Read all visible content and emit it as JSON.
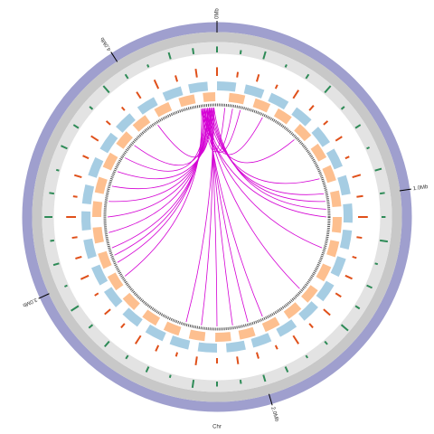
{
  "chart_data": {
    "type": "circos",
    "xlabel": "Chr",
    "xlim": [
      0,
      4.4
    ],
    "xticks": [
      {
        "value": 0,
        "label": "0Mb"
      },
      {
        "value": 1,
        "label": "1.0Mb"
      },
      {
        "value": 2,
        "label": "2.0Mb"
      },
      {
        "value": 3,
        "label": "3.0Mb"
      },
      {
        "value": 4,
        "label": "4.0Mb"
      }
    ],
    "ylim": [
      0,
      1
    ],
    "x": [
      0,
      0.1,
      0.2,
      0.3,
      0.4,
      0.5,
      0.6,
      0.7,
      0.8,
      0.9,
      1.0,
      1.1,
      1.2,
      1.3,
      1.4,
      1.5,
      1.6,
      1.7,
      1.8,
      1.9,
      2.0,
      2.1,
      2.2,
      2.3,
      2.4,
      2.5,
      2.6,
      2.7,
      2.8,
      2.9,
      3.0,
      3.1,
      3.2,
      3.3,
      3.4,
      3.5,
      3.6,
      3.7,
      3.8,
      3.9,
      4.0,
      4.1,
      4.2,
      4.3
    ],
    "tracks": [
      {
        "color": "#2e8b57",
        "values": [
          0.6,
          0.4,
          0.8,
          0.3,
          0.5,
          0.9,
          0.4,
          0.6,
          0.3,
          0.7,
          0.5,
          0.4,
          0.8,
          0.3,
          0.6,
          0.5,
          0.9,
          0.4,
          0.3,
          0.6,
          0.7,
          0.4,
          0.5,
          0.8,
          0.3,
          0.6,
          0.4,
          0.7,
          0.5,
          0.9,
          0.3,
          0.6,
          0.4,
          0.8,
          0.5,
          0.3,
          0.7,
          0.6,
          0.4,
          0.9,
          0.5,
          0.3,
          0.7,
          0.6
        ]
      },
      {
        "color": "#e0501a",
        "values": [
          0.8,
          0.5,
          0.7,
          0.4,
          0.9,
          0.6,
          0.5,
          0.7,
          0.4,
          0.8,
          0.6,
          0.9,
          0.5,
          0.4,
          0.7,
          0.6,
          0.8,
          0.5,
          0.9,
          0.4,
          0.6,
          0.7,
          0.5,
          0.8,
          0.4,
          0.6,
          0.9,
          0.5,
          0.7,
          0.4,
          0.8,
          0.6,
          0.5,
          0.9,
          0.4,
          0.7,
          0.6,
          0.8,
          0.5,
          0.4,
          0.7,
          0.9,
          0.6,
          0.8
        ]
      }
    ],
    "genes": [
      {
        "color": "#a6cde3",
        "starts": [
          0.0,
          0.15,
          0.29,
          0.44,
          0.59,
          0.73,
          0.88,
          1.03,
          1.17,
          1.32,
          1.47,
          1.61,
          1.76,
          1.91,
          2.05,
          2.2,
          2.35,
          2.49,
          2.64,
          2.79,
          2.93,
          3.08,
          3.23,
          3.37,
          3.52,
          3.67,
          3.81,
          3.96,
          4.11,
          4.25
        ],
        "ends": [
          0.1,
          0.25,
          0.39,
          0.54,
          0.69,
          0.83,
          0.98,
          1.13,
          1.27,
          1.42,
          1.57,
          1.71,
          1.86,
          2.01,
          2.15,
          2.3,
          2.45,
          2.59,
          2.74,
          2.89,
          3.03,
          3.18,
          3.33,
          3.47,
          3.62,
          3.77,
          3.91,
          4.06,
          4.21,
          4.35
        ]
      },
      {
        "color": "#fdbf8f",
        "starts": [
          0.07,
          0.22,
          0.36,
          0.51,
          0.66,
          0.8,
          0.95,
          1.1,
          1.24,
          1.39,
          1.54,
          1.68,
          1.83,
          1.98,
          2.12,
          2.27,
          2.42,
          2.56,
          2.71,
          2.86,
          3.0,
          3.15,
          3.3,
          3.44,
          3.59,
          3.74,
          3.88,
          4.03,
          4.18,
          4.32
        ],
        "ends": [
          0.16,
          0.31,
          0.45,
          0.6,
          0.75,
          0.89,
          1.04,
          1.19,
          1.33,
          1.48,
          1.63,
          1.77,
          1.92,
          2.07,
          2.21,
          2.36,
          2.51,
          2.65,
          2.8,
          2.95,
          3.09,
          3.24,
          3.39,
          3.53,
          3.68,
          3.83,
          3.97,
          4.12,
          4.27,
          4.39
        ]
      }
    ],
    "links": {
      "color": "#d400d4",
      "from": [
        4.3,
        4.31,
        4.32,
        4.33,
        4.34,
        4.35,
        4.36,
        4.37,
        4.38,
        4.3,
        4.31,
        4.32,
        4.33,
        4.34,
        4.35,
        4.36,
        4.37,
        4.38,
        4.3,
        4.31,
        4.32,
        4.33,
        4.34,
        4.35,
        4.36,
        4.37,
        4.38,
        4.32,
        4.34,
        4.36
      ],
      "to": [
        0.05,
        0.1,
        0.15,
        0.3,
        0.55,
        0.85,
        0.95,
        1.0,
        1.05,
        1.1,
        1.3,
        1.6,
        1.9,
        2.0,
        2.1,
        2.2,
        2.3,
        2.4,
        2.9,
        3.0,
        3.05,
        3.1,
        3.2,
        3.3,
        3.4,
        3.5,
        3.6,
        3.7,
        3.8,
        4.0
      ]
    }
  }
}
